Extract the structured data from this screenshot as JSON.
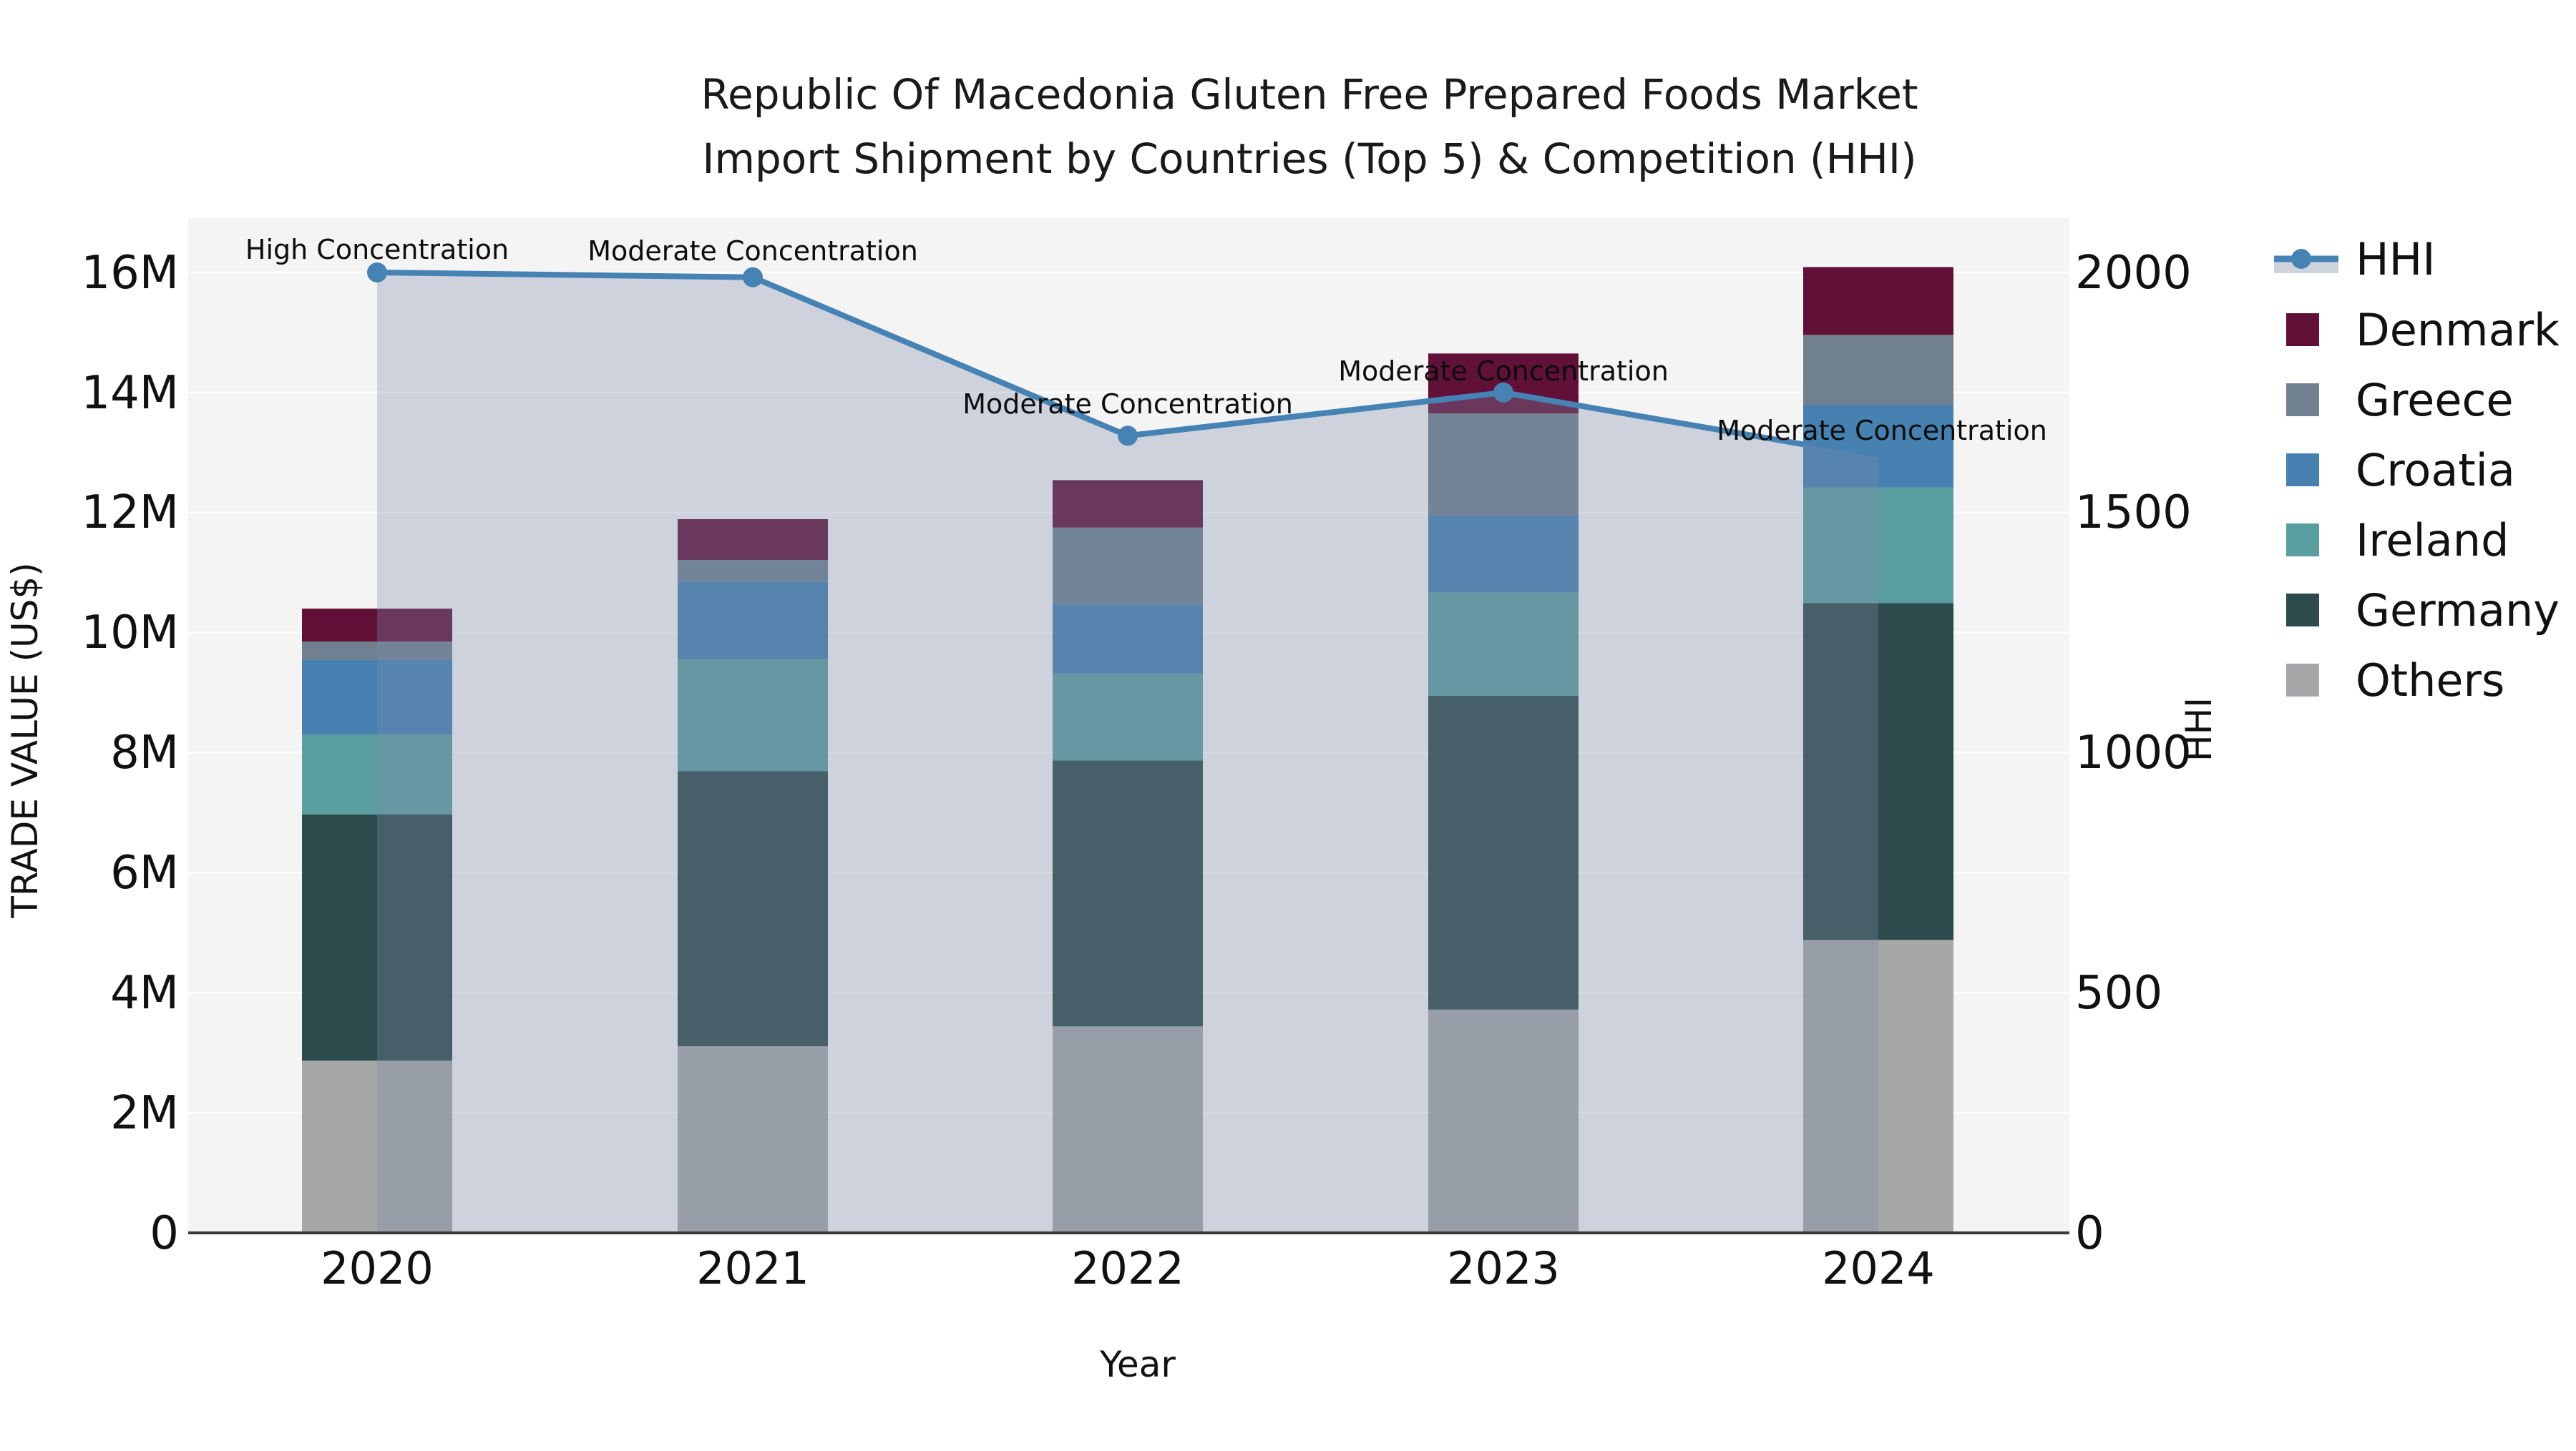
{
  "title": {
    "line1": "Republic Of Macedonia Gluten Free Prepared Foods Market",
    "line2": "Import Shipment by Countries (Top 5) & Competition (HHI)"
  },
  "colors": {
    "plot_background": "#f4f4f5",
    "page_background": "#ffffff",
    "gridline": "#ffffff",
    "axis_line": "#3a3a3a",
    "hhi_line": "#4682B4",
    "hhi_area_fill": "rgba(125,141,167,0.32)",
    "legend_band": "#cdd3dc"
  },
  "chart_data": {
    "type": "stacked-bar + line combo",
    "categories": [
      "2020",
      "2021",
      "2022",
      "2023",
      "2024"
    ],
    "bar_unit": "USD millions",
    "stack_order_bottom_to_top": [
      "Others",
      "Germany",
      "Ireland",
      "Croatia",
      "Greece",
      "Denmark"
    ],
    "series": [
      {
        "name": "Denmark",
        "color": "#611138",
        "values": [
          0.55,
          0.68,
          0.79,
          1.0,
          1.13
        ]
      },
      {
        "name": "Greece",
        "color": "#718091",
        "values": [
          0.3,
          0.36,
          1.28,
          1.7,
          1.17
        ]
      },
      {
        "name": "Croatia",
        "color": "#4681B2",
        "values": [
          1.25,
          1.29,
          1.15,
          1.28,
          1.37
        ]
      },
      {
        "name": "Ireland",
        "color": "#5A9EA0",
        "values": [
          1.33,
          1.87,
          1.45,
          1.72,
          1.93
        ]
      },
      {
        "name": "Germany",
        "color": "#2D4A4C",
        "values": [
          4.1,
          4.58,
          4.43,
          5.23,
          5.61
        ]
      },
      {
        "name": "Others",
        "color": "#A6A7A8",
        "values": [
          2.87,
          3.11,
          3.44,
          3.72,
          4.88
        ]
      }
    ],
    "bar_totals": [
      10.4,
      11.89,
      12.54,
      14.65,
      16.09
    ],
    "line": {
      "name": "HHI",
      "color": "#4682B4",
      "values": [
        2000,
        1990,
        1660,
        1750,
        1615
      ],
      "axis": "right"
    },
    "annotations": [
      {
        "year": "2020",
        "text": "High Concentration"
      },
      {
        "year": "2021",
        "text": "Moderate Concentration"
      },
      {
        "year": "2022",
        "text": "Moderate Concentration"
      },
      {
        "year": "2023",
        "text": "Moderate Concentration"
      },
      {
        "year": "2024",
        "text": "Moderate Concentration"
      }
    ],
    "xlabel": "Year",
    "ylabel_left": "TRADE VALUE (US$)",
    "ylabel_right": "HHI",
    "y_left_ticks": [
      "0",
      "2M",
      "4M",
      "6M",
      "8M",
      "10M",
      "12M",
      "14M",
      "16M"
    ],
    "y_left_tick_values": [
      0,
      2,
      4,
      6,
      8,
      10,
      12,
      14,
      16
    ],
    "y_right_ticks": [
      "0",
      "500",
      "1000",
      "1500",
      "2000"
    ],
    "y_right_tick_values": [
      0,
      500,
      1000,
      1500,
      2000
    ],
    "ylim_left": [
      0,
      17.1
    ],
    "ylim_right": [
      0,
      2140
    ],
    "grid": "horizontal only",
    "legend_position": "right"
  },
  "legend": {
    "items": [
      {
        "label": "HHI",
        "color": "#4682B4",
        "type": "line"
      },
      {
        "label": "Denmark",
        "color": "#611138",
        "type": "square"
      },
      {
        "label": "Greece",
        "color": "#718091",
        "type": "square"
      },
      {
        "label": "Croatia",
        "color": "#4681B2",
        "type": "square"
      },
      {
        "label": "Ireland",
        "color": "#5A9EA0",
        "type": "square"
      },
      {
        "label": "Germany",
        "color": "#2D4A4C",
        "type": "square"
      },
      {
        "label": "Others",
        "color": "#A6A7A8",
        "type": "square"
      }
    ]
  }
}
